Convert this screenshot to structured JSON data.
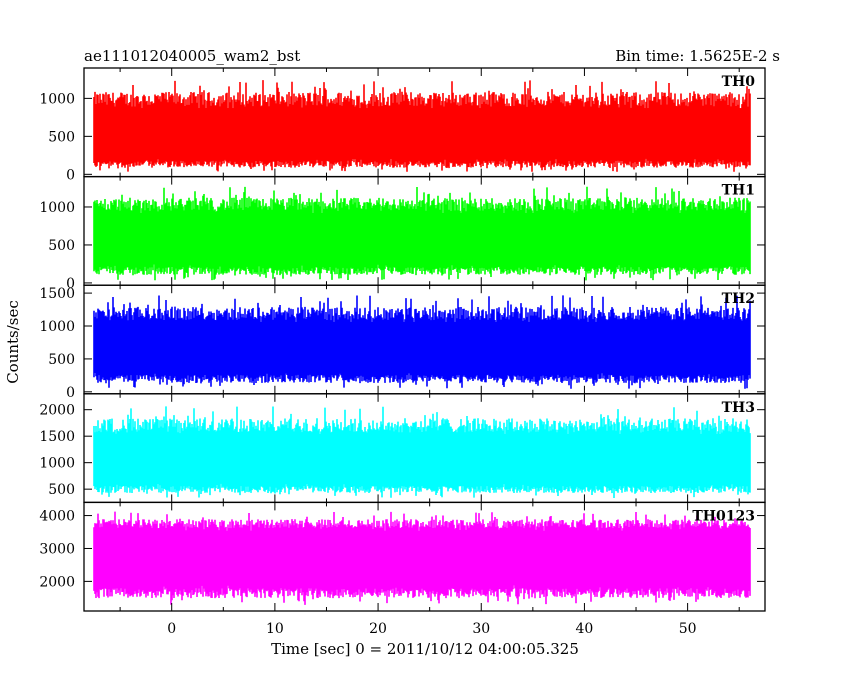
{
  "chart_data": {
    "type": "line",
    "title": "ae111012040005_wam2_bst",
    "subtitle": "Bin time: 1.5625E-2 s",
    "xlabel": "Time [sec] 0 = 2011/10/12 04:00:05.325",
    "ylabel": "Counts/sec",
    "xlim": [
      -8.5,
      57.5
    ],
    "x_ticks": [
      0,
      10,
      20,
      30,
      40,
      50
    ],
    "x_tick_labels": [
      "0",
      "10",
      "20",
      "30",
      "40",
      "50"
    ],
    "data_x_range": [
      -7.5,
      56
    ],
    "grid": false,
    "panels": [
      {
        "name": "TH0",
        "color": "#ff0000",
        "ylim": [
          -30,
          1400
        ],
        "y_ticks": [
          0,
          500,
          1000
        ],
        "y_tick_labels": [
          "0",
          "500",
          "1000"
        ],
        "mean": 520,
        "low": 150,
        "high": 950,
        "spike_max": 1380
      },
      {
        "name": "TH1",
        "color": "#00ff00",
        "ylim": [
          -30,
          1400
        ],
        "y_ticks": [
          0,
          500,
          1000
        ],
        "y_tick_labels": [
          "0",
          "500",
          "1000"
        ],
        "mean": 560,
        "low": 180,
        "high": 1000,
        "spike_max": 1390
      },
      {
        "name": "TH2",
        "color": "#0000ff",
        "ylim": [
          -30,
          1620
        ],
        "y_ticks": [
          0,
          500,
          1000,
          1500
        ],
        "y_tick_labels": [
          "0",
          "500",
          "1000",
          "1500"
        ],
        "mean": 660,
        "low": 220,
        "high": 1150,
        "spike_max": 1600
      },
      {
        "name": "TH3",
        "color": "#00ffff",
        "ylim": [
          250,
          2300
        ],
        "y_ticks": [
          500,
          1000,
          1500,
          2000
        ],
        "y_tick_labels": [
          "500",
          "1000",
          "1500",
          "2000"
        ],
        "mean": 1050,
        "low": 520,
        "high": 1650,
        "spike_max": 2250
      },
      {
        "name": "TH0123",
        "color": "#ff00ff",
        "ylim": [
          1100,
          4400
        ],
        "y_ticks": [
          2000,
          3000,
          4000
        ],
        "y_tick_labels": [
          "2000",
          "3000",
          "4000"
        ],
        "mean": 2800,
        "low": 1700,
        "high": 3700,
        "spike_max": 4300
      }
    ]
  }
}
